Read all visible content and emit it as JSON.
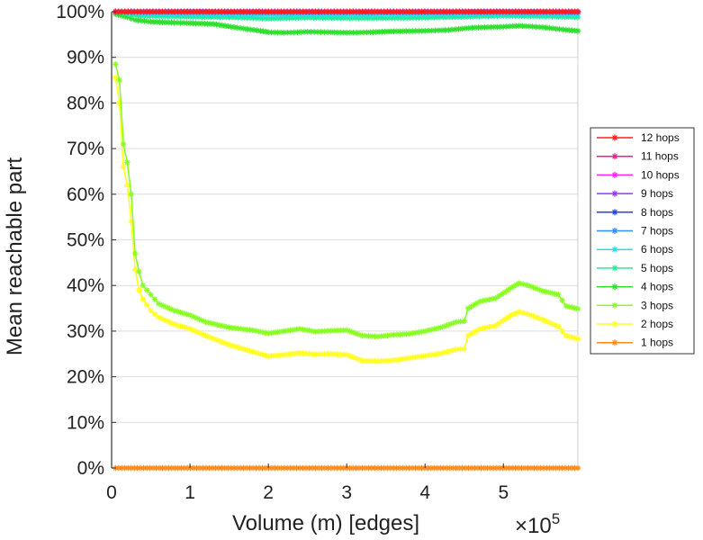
{
  "chart_data": {
    "type": "line",
    "title": "",
    "xlabel": "Volume (m) [edges]",
    "ylabel": "Mean reachable part",
    "x_multiplier": "×10",
    "x_multiplier_exp": "5",
    "xlim": [
      0,
      5.95
    ],
    "ylim": [
      0,
      100
    ],
    "x_ticks": [
      0,
      1,
      2,
      3,
      4,
      5
    ],
    "x_tick_labels": [
      "0",
      "1",
      "2",
      "3",
      "4",
      "5"
    ],
    "y_ticks": [
      0,
      10,
      20,
      30,
      40,
      50,
      60,
      70,
      80,
      90,
      100
    ],
    "y_tick_labels": [
      "0%",
      "10%",
      "20%",
      "30%",
      "40%",
      "50%",
      "60%",
      "70%",
      "80%",
      "90%",
      "100%"
    ],
    "grid": true,
    "legend_position": "right",
    "series": [
      {
        "name": "12 hops",
        "color": "#ff1f1f",
        "x": [
          0.05,
          3.0,
          5.95
        ],
        "values": [
          100,
          100,
          100
        ]
      },
      {
        "name": "11 hops",
        "color": "#ff1493",
        "x": [
          0.05,
          3.0,
          5.95
        ],
        "values": [
          100,
          100,
          100
        ]
      },
      {
        "name": "10 hops",
        "color": "#ff22ff",
        "x": [
          0.05,
          3.0,
          5.95
        ],
        "values": [
          100,
          100,
          100
        ]
      },
      {
        "name": "9 hops",
        "color": "#9933ff",
        "x": [
          0.05,
          3.0,
          5.95
        ],
        "values": [
          100,
          100,
          100
        ]
      },
      {
        "name": "8 hops",
        "color": "#1f3fff",
        "x": [
          0.05,
          3.0,
          5.95
        ],
        "values": [
          100,
          100,
          100
        ]
      },
      {
        "name": "7 hops",
        "color": "#2f8fff",
        "x": [
          0.05,
          1.0,
          2.0,
          3.0,
          4.0,
          5.0,
          5.95
        ],
        "values": [
          100,
          100,
          99.9,
          99.9,
          99.9,
          100,
          99.9
        ]
      },
      {
        "name": "6 hops",
        "color": "#22ddff",
        "x": [
          0.05,
          0.5,
          1.0,
          2.0,
          3.0,
          4.0,
          5.0,
          5.95
        ],
        "values": [
          100,
          99.6,
          99.5,
          99.4,
          99.4,
          99.5,
          99.6,
          99.5
        ]
      },
      {
        "name": "5 hops",
        "color": "#22ee99",
        "x": [
          0.05,
          0.3,
          0.6,
          1.0,
          1.5,
          2.0,
          2.5,
          3.0,
          3.5,
          4.0,
          4.5,
          5.0,
          5.5,
          5.95
        ],
        "values": [
          100,
          99.2,
          99.0,
          98.9,
          98.8,
          98.5,
          98.7,
          98.6,
          98.6,
          98.7,
          98.9,
          99.1,
          99.0,
          98.8
        ]
      },
      {
        "name": "4 hops",
        "color": "#2ee02e",
        "x": [
          0.05,
          0.2,
          0.3,
          0.5,
          0.8,
          1.0,
          1.3,
          1.6,
          1.9,
          2.0,
          2.2,
          2.5,
          2.8,
          3.0,
          3.3,
          3.6,
          4.0,
          4.3,
          4.6,
          5.0,
          5.2,
          5.5,
          5.8,
          5.95
        ],
        "values": [
          99.5,
          98.8,
          98.2,
          97.8,
          97.6,
          97.5,
          97.3,
          96.5,
          95.8,
          95.5,
          95.4,
          95.6,
          95.5,
          95.4,
          95.5,
          95.7,
          95.8,
          96.0,
          96.5,
          96.7,
          96.9,
          96.6,
          96.0,
          95.8
        ]
      },
      {
        "name": "3 hops",
        "color": "#88ff22",
        "x": [
          0.05,
          0.1,
          0.15,
          0.2,
          0.25,
          0.3,
          0.35,
          0.4,
          0.5,
          0.6,
          0.8,
          1.0,
          1.2,
          1.5,
          1.8,
          2.0,
          2.2,
          2.4,
          2.6,
          2.8,
          3.0,
          3.2,
          3.4,
          3.6,
          3.8,
          4.0,
          4.2,
          4.4,
          4.5,
          4.55,
          4.7,
          4.9,
          5.1,
          5.2,
          5.3,
          5.5,
          5.7,
          5.8,
          5.95
        ],
        "values": [
          88.5,
          85,
          71,
          67,
          60,
          47,
          43,
          40,
          38,
          36,
          34.5,
          33.5,
          32,
          30.8,
          30.2,
          29.5,
          30,
          30.5,
          29.9,
          30.1,
          30.2,
          29.0,
          28.8,
          29.2,
          29.4,
          30,
          30.8,
          32,
          32.2,
          35,
          36.5,
          37.2,
          39.5,
          40.5,
          40.1,
          38.8,
          38,
          35.5,
          34.9
        ]
      },
      {
        "name": "2 hops",
        "color": "#ffff22",
        "x": [
          0.05,
          0.1,
          0.15,
          0.2,
          0.25,
          0.3,
          0.35,
          0.4,
          0.5,
          0.6,
          0.8,
          1.0,
          1.2,
          1.5,
          1.8,
          2.0,
          2.2,
          2.4,
          2.6,
          2.8,
          3.0,
          3.2,
          3.4,
          3.6,
          3.8,
          4.0,
          4.2,
          4.4,
          4.5,
          4.55,
          4.7,
          4.9,
          5.1,
          5.2,
          5.3,
          5.5,
          5.7,
          5.8,
          5.95
        ],
        "values": [
          85.5,
          80,
          66,
          62,
          54,
          43.5,
          39,
          37,
          34.5,
          33,
          31.5,
          30.5,
          29,
          27,
          25.5,
          24.5,
          24.8,
          25.2,
          24.9,
          25.0,
          24.8,
          23.5,
          23.4,
          23.6,
          24.1,
          24.6,
          25.1,
          26,
          26.1,
          29,
          30.5,
          31.2,
          33.5,
          34.2,
          33.8,
          32.5,
          31,
          29,
          28.3
        ]
      },
      {
        "name": "1 hops",
        "color": "#ff8c1a",
        "x": [
          0.05,
          3.0,
          5.95
        ],
        "values": [
          0,
          0,
          0
        ]
      }
    ]
  }
}
